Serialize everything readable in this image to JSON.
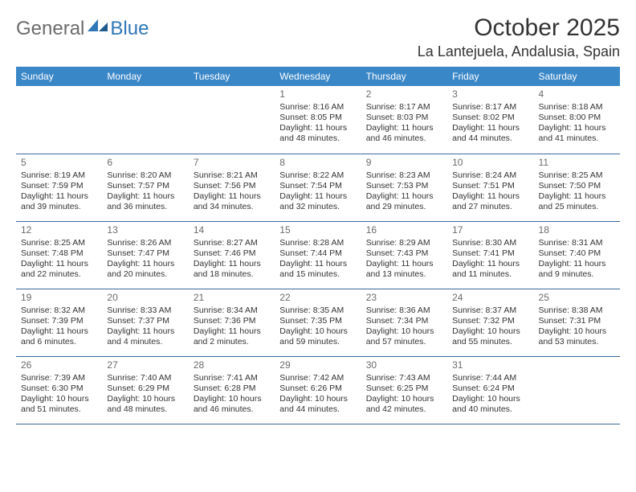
{
  "brand": {
    "part1": "General",
    "part2": "Blue"
  },
  "title": "October 2025",
  "location": "La Lantejuela, Andalusia, Spain",
  "colors": {
    "header_bg": "#3a87c8",
    "header_text": "#ffffff",
    "border": "#3a6a9a",
    "logo_blue": "#2f77b8",
    "logo_gray": "#6b6b6b"
  },
  "day_headers": [
    "Sunday",
    "Monday",
    "Tuesday",
    "Wednesday",
    "Thursday",
    "Friday",
    "Saturday"
  ],
  "weeks": [
    [
      null,
      null,
      null,
      {
        "n": "1",
        "sr": "Sunrise: 8:16 AM",
        "ss": "Sunset: 8:05 PM",
        "d1": "Daylight: 11 hours",
        "d2": "and 48 minutes."
      },
      {
        "n": "2",
        "sr": "Sunrise: 8:17 AM",
        "ss": "Sunset: 8:03 PM",
        "d1": "Daylight: 11 hours",
        "d2": "and 46 minutes."
      },
      {
        "n": "3",
        "sr": "Sunrise: 8:17 AM",
        "ss": "Sunset: 8:02 PM",
        "d1": "Daylight: 11 hours",
        "d2": "and 44 minutes."
      },
      {
        "n": "4",
        "sr": "Sunrise: 8:18 AM",
        "ss": "Sunset: 8:00 PM",
        "d1": "Daylight: 11 hours",
        "d2": "and 41 minutes."
      }
    ],
    [
      {
        "n": "5",
        "sr": "Sunrise: 8:19 AM",
        "ss": "Sunset: 7:59 PM",
        "d1": "Daylight: 11 hours",
        "d2": "and 39 minutes."
      },
      {
        "n": "6",
        "sr": "Sunrise: 8:20 AM",
        "ss": "Sunset: 7:57 PM",
        "d1": "Daylight: 11 hours",
        "d2": "and 36 minutes."
      },
      {
        "n": "7",
        "sr": "Sunrise: 8:21 AM",
        "ss": "Sunset: 7:56 PM",
        "d1": "Daylight: 11 hours",
        "d2": "and 34 minutes."
      },
      {
        "n": "8",
        "sr": "Sunrise: 8:22 AM",
        "ss": "Sunset: 7:54 PM",
        "d1": "Daylight: 11 hours",
        "d2": "and 32 minutes."
      },
      {
        "n": "9",
        "sr": "Sunrise: 8:23 AM",
        "ss": "Sunset: 7:53 PM",
        "d1": "Daylight: 11 hours",
        "d2": "and 29 minutes."
      },
      {
        "n": "10",
        "sr": "Sunrise: 8:24 AM",
        "ss": "Sunset: 7:51 PM",
        "d1": "Daylight: 11 hours",
        "d2": "and 27 minutes."
      },
      {
        "n": "11",
        "sr": "Sunrise: 8:25 AM",
        "ss": "Sunset: 7:50 PM",
        "d1": "Daylight: 11 hours",
        "d2": "and 25 minutes."
      }
    ],
    [
      {
        "n": "12",
        "sr": "Sunrise: 8:25 AM",
        "ss": "Sunset: 7:48 PM",
        "d1": "Daylight: 11 hours",
        "d2": "and 22 minutes."
      },
      {
        "n": "13",
        "sr": "Sunrise: 8:26 AM",
        "ss": "Sunset: 7:47 PM",
        "d1": "Daylight: 11 hours",
        "d2": "and 20 minutes."
      },
      {
        "n": "14",
        "sr": "Sunrise: 8:27 AM",
        "ss": "Sunset: 7:46 PM",
        "d1": "Daylight: 11 hours",
        "d2": "and 18 minutes."
      },
      {
        "n": "15",
        "sr": "Sunrise: 8:28 AM",
        "ss": "Sunset: 7:44 PM",
        "d1": "Daylight: 11 hours",
        "d2": "and 15 minutes."
      },
      {
        "n": "16",
        "sr": "Sunrise: 8:29 AM",
        "ss": "Sunset: 7:43 PM",
        "d1": "Daylight: 11 hours",
        "d2": "and 13 minutes."
      },
      {
        "n": "17",
        "sr": "Sunrise: 8:30 AM",
        "ss": "Sunset: 7:41 PM",
        "d1": "Daylight: 11 hours",
        "d2": "and 11 minutes."
      },
      {
        "n": "18",
        "sr": "Sunrise: 8:31 AM",
        "ss": "Sunset: 7:40 PM",
        "d1": "Daylight: 11 hours",
        "d2": "and 9 minutes."
      }
    ],
    [
      {
        "n": "19",
        "sr": "Sunrise: 8:32 AM",
        "ss": "Sunset: 7:39 PM",
        "d1": "Daylight: 11 hours",
        "d2": "and 6 minutes."
      },
      {
        "n": "20",
        "sr": "Sunrise: 8:33 AM",
        "ss": "Sunset: 7:37 PM",
        "d1": "Daylight: 11 hours",
        "d2": "and 4 minutes."
      },
      {
        "n": "21",
        "sr": "Sunrise: 8:34 AM",
        "ss": "Sunset: 7:36 PM",
        "d1": "Daylight: 11 hours",
        "d2": "and 2 minutes."
      },
      {
        "n": "22",
        "sr": "Sunrise: 8:35 AM",
        "ss": "Sunset: 7:35 PM",
        "d1": "Daylight: 10 hours",
        "d2": "and 59 minutes."
      },
      {
        "n": "23",
        "sr": "Sunrise: 8:36 AM",
        "ss": "Sunset: 7:34 PM",
        "d1": "Daylight: 10 hours",
        "d2": "and 57 minutes."
      },
      {
        "n": "24",
        "sr": "Sunrise: 8:37 AM",
        "ss": "Sunset: 7:32 PM",
        "d1": "Daylight: 10 hours",
        "d2": "and 55 minutes."
      },
      {
        "n": "25",
        "sr": "Sunrise: 8:38 AM",
        "ss": "Sunset: 7:31 PM",
        "d1": "Daylight: 10 hours",
        "d2": "and 53 minutes."
      }
    ],
    [
      {
        "n": "26",
        "sr": "Sunrise: 7:39 AM",
        "ss": "Sunset: 6:30 PM",
        "d1": "Daylight: 10 hours",
        "d2": "and 51 minutes."
      },
      {
        "n": "27",
        "sr": "Sunrise: 7:40 AM",
        "ss": "Sunset: 6:29 PM",
        "d1": "Daylight: 10 hours",
        "d2": "and 48 minutes."
      },
      {
        "n": "28",
        "sr": "Sunrise: 7:41 AM",
        "ss": "Sunset: 6:28 PM",
        "d1": "Daylight: 10 hours",
        "d2": "and 46 minutes."
      },
      {
        "n": "29",
        "sr": "Sunrise: 7:42 AM",
        "ss": "Sunset: 6:26 PM",
        "d1": "Daylight: 10 hours",
        "d2": "and 44 minutes."
      },
      {
        "n": "30",
        "sr": "Sunrise: 7:43 AM",
        "ss": "Sunset: 6:25 PM",
        "d1": "Daylight: 10 hours",
        "d2": "and 42 minutes."
      },
      {
        "n": "31",
        "sr": "Sunrise: 7:44 AM",
        "ss": "Sunset: 6:24 PM",
        "d1": "Daylight: 10 hours",
        "d2": "and 40 minutes."
      },
      null
    ]
  ]
}
